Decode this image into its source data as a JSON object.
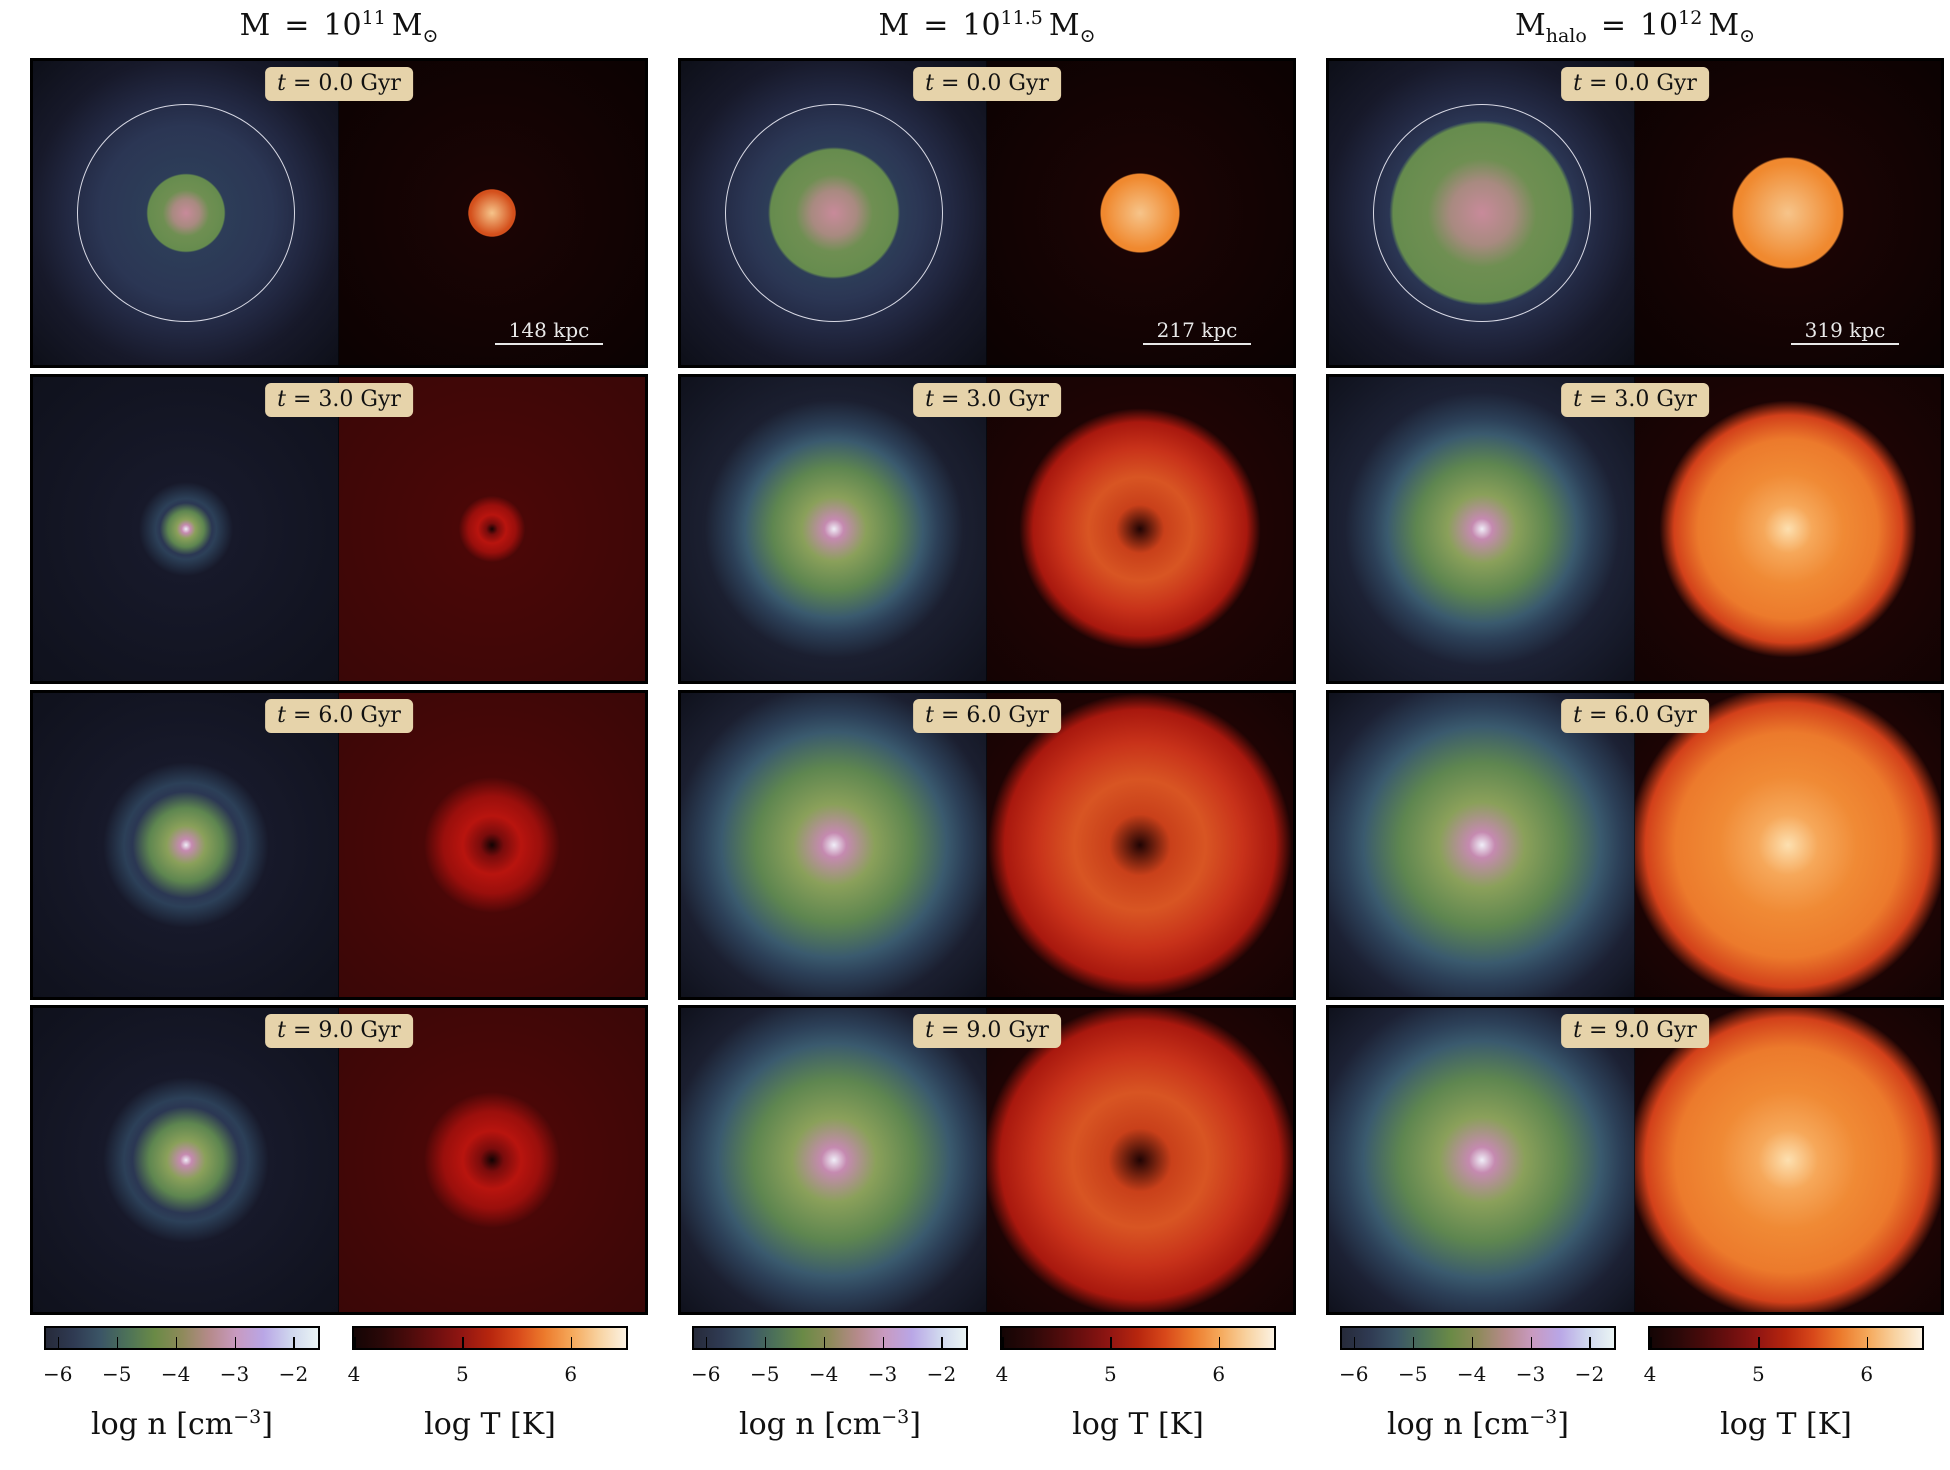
{
  "columns": [
    {
      "title": {
        "lhs": "M",
        "eq": "=",
        "base": "10",
        "exp": "11",
        "unit": "M",
        "sun": "⊙",
        "sub": ""
      },
      "scale_label": "148 kpc",
      "rows": [
        {
          "time": "0.0 Gyr",
          "stage": "initial",
          "size": 0.18,
          "circle": 0.72,
          "spread": 0.0,
          "tint": "low"
        },
        {
          "time": "3.0 Gyr",
          "stage": "evolved",
          "size": 0.22,
          "spread": 0.9,
          "tint": "low"
        },
        {
          "time": "6.0 Gyr",
          "stage": "evolved",
          "size": 0.45,
          "spread": 1.0,
          "tint": "low"
        },
        {
          "time": "9.0 Gyr",
          "stage": "evolved",
          "size": 0.45,
          "spread": 0.8,
          "tint": "low"
        }
      ]
    },
    {
      "title": {
        "lhs": "M",
        "eq": "=",
        "base": "10",
        "exp": "11.5",
        "unit": "M",
        "sun": "⊙",
        "sub": ""
      },
      "scale_label": "217 kpc",
      "rows": [
        {
          "time": "0.0 Gyr",
          "stage": "initial",
          "size": 0.3,
          "circle": 0.72,
          "spread": 0.0,
          "tint": "mid"
        },
        {
          "time": "3.0 Gyr",
          "stage": "evolved",
          "size": 0.75,
          "spread": 0.7,
          "tint": "mid"
        },
        {
          "time": "6.0 Gyr",
          "stage": "evolved",
          "size": 0.95,
          "spread": 0.9,
          "tint": "mid"
        },
        {
          "time": "9.0 Gyr",
          "stage": "evolved",
          "size": 0.98,
          "spread": 1.0,
          "tint": "mid"
        }
      ]
    },
    {
      "title": {
        "lhs": "M",
        "eq": "=",
        "base": "10",
        "exp": "12",
        "unit": "M",
        "sun": "⊙",
        "sub": "halo"
      },
      "scale_label": "319 kpc",
      "rows": [
        {
          "time": "0.0 Gyr",
          "stage": "initial",
          "size": 0.42,
          "circle": 0.72,
          "spread": 0.0,
          "tint": "high"
        },
        {
          "time": "3.0 Gyr",
          "stage": "evolved",
          "size": 0.8,
          "spread": 0.6,
          "tint": "high"
        },
        {
          "time": "6.0 Gyr",
          "stage": "evolved",
          "size": 1.0,
          "spread": 0.8,
          "tint": "high"
        },
        {
          "time": "9.0 Gyr",
          "stage": "evolved",
          "size": 1.0,
          "spread": 0.9,
          "tint": "high"
        }
      ]
    }
  ],
  "time_var": "t",
  "time_eq": "=",
  "density_colorbar": {
    "ticks": [
      "−6",
      "−5",
      "−4",
      "−3",
      "−2"
    ],
    "tick_values": [
      -6,
      -5,
      -4,
      -3,
      -2
    ],
    "range": [
      -6.2,
      -1.6
    ],
    "label_prefix": "log n [cm",
    "label_exp": "−3",
    "label_suffix": "]",
    "colors": [
      "#262a3a",
      "#2f3a52",
      "#3b5566",
      "#4d7258",
      "#6a8a46",
      "#8e8a5a",
      "#b58a8a",
      "#c89ac0",
      "#b9a6e6",
      "#cfd6ee",
      "#eaf4f4"
    ]
  },
  "temp_colorbar": {
    "ticks": [
      "4",
      "5",
      "6"
    ],
    "tick_values": [
      4,
      5,
      6
    ],
    "range": [
      4.0,
      6.5
    ],
    "label": "log T [K]",
    "colors": [
      "#140505",
      "#2a0808",
      "#4a0b0b",
      "#6e0f0f",
      "#921612",
      "#b7260e",
      "#d8481a",
      "#ec7a2c",
      "#f5a85a",
      "#f8d2a0",
      "#fcf2e2"
    ]
  }
}
